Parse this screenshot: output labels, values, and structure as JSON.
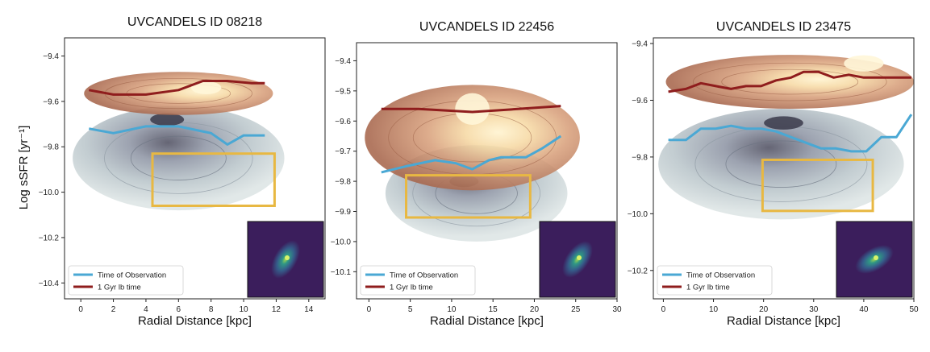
{
  "figure": {
    "ylabel": "Log sSFR [yr⁻¹]",
    "xlabel": "Radial Distance [kpc]"
  },
  "legend": {
    "entries": [
      {
        "label": "Time of Observation",
        "color": "#4aa8d4"
      },
      {
        "label": "1 Gyr lb time",
        "color": "#8f1d1d"
      }
    ]
  },
  "colors": {
    "observation_line": "#4aa8d4",
    "lookback_line": "#8f1d1d",
    "highlight_box": "#e8b842",
    "upper_contour": "#b06d4f",
    "upper_contour_core": "#fbe7b2",
    "lower_contour": "#7c8796",
    "lower_contour_core": "#3a3a4a",
    "inset_background": "#3b1e5c"
  },
  "chart_data": [
    {
      "type": "line",
      "title": "UVCANDELS ID 08218",
      "xlabel": "Radial Distance [kpc]",
      "ylabel": "Log sSFR [yr⁻¹]",
      "xlim": [
        -1,
        15
      ],
      "ylim": [
        -10.47,
        -9.32
      ],
      "xticks": [
        0,
        2,
        4,
        6,
        8,
        10,
        12,
        14
      ],
      "yticks": [
        -9.4,
        -9.6,
        -9.8,
        -10.0,
        -10.2,
        -10.4
      ],
      "legend_position": "lower-left",
      "series": [
        {
          "name": "Time of Observation",
          "color": "#4aa8d4",
          "x": [
            0.5,
            2.0,
            4.0,
            6.0,
            8.0,
            9.0,
            10.0,
            11.3
          ],
          "y": [
            -9.72,
            -9.74,
            -9.71,
            -9.71,
            -9.74,
            -9.79,
            -9.75,
            -9.75
          ]
        },
        {
          "name": "1 Gyr lb time",
          "color": "#8f1d1d",
          "x": [
            0.5,
            2.0,
            4.0,
            6.0,
            7.5,
            9.0,
            10.5,
            11.3
          ],
          "y": [
            -9.55,
            -9.57,
            -9.57,
            -9.55,
            -9.51,
            -9.51,
            -9.52,
            -9.52
          ]
        }
      ],
      "upper_density": {
        "x_range": [
          0.2,
          11.8
        ],
        "y_range": [
          -9.66,
          -9.47
        ],
        "core": [
          7.7,
          -9.54
        ]
      },
      "lower_density": {
        "x_range": [
          -0.5,
          12.5
        ],
        "y_range": [
          -10.08,
          -9.62
        ],
        "core": [
          5.3,
          -9.68
        ]
      },
      "highlight_box": {
        "x": [
          4.4,
          11.9
        ],
        "y": [
          -10.06,
          -9.83
        ]
      }
    },
    {
      "type": "line",
      "title": "UVCANDELS ID 22456",
      "xlabel": "Radial Distance [kpc]",
      "xlim": [
        -1.5,
        30
      ],
      "ylim": [
        -10.19,
        -9.34
      ],
      "xticks": [
        0,
        5,
        10,
        15,
        20,
        25,
        30
      ],
      "yticks": [
        -9.4,
        -9.5,
        -9.6,
        -9.7,
        -9.8,
        -9.9,
        -10.0,
        -10.1
      ],
      "legend_position": "lower-left",
      "series": [
        {
          "name": "Time of Observation",
          "color": "#4aa8d4",
          "x": [
            1.5,
            4.5,
            8.0,
            10.5,
            12.5,
            14.5,
            16.0,
            19.0,
            21.0,
            23.2
          ],
          "y": [
            -9.77,
            -9.75,
            -9.73,
            -9.74,
            -9.76,
            -9.73,
            -9.72,
            -9.72,
            -9.69,
            -9.65
          ]
        },
        {
          "name": "1 Gyr lb time",
          "color": "#8f1d1d",
          "x": [
            1.5,
            6.0,
            12.5,
            18.0,
            23.2
          ],
          "y": [
            -9.56,
            -9.56,
            -9.57,
            -9.56,
            -9.55
          ]
        }
      ],
      "upper_density": {
        "x_range": [
          -0.5,
          25.5
        ],
        "y_range": [
          -9.83,
          -9.48
        ],
        "core": [
          12.5,
          -9.56
        ]
      },
      "lower_density": {
        "x_range": [
          2,
          24
        ],
        "y_range": [
          -10.0,
          -9.68
        ],
        "core": [
          11.5,
          -9.8
        ]
      },
      "highlight_box": {
        "x": [
          4.5,
          19.5
        ],
        "y": [
          -9.92,
          -9.78
        ]
      }
    },
    {
      "type": "line",
      "title": "UVCANDELS ID 23475",
      "xlabel": "Radial Distance [kpc]",
      "xlim": [
        -2,
        50
      ],
      "ylim": [
        -10.3,
        -9.38
      ],
      "xticks": [
        0,
        10,
        20,
        30,
        40,
        50
      ],
      "yticks": [
        -9.4,
        -9.6,
        -9.8,
        -10.0,
        -10.2
      ],
      "legend_position": "lower-left",
      "series": [
        {
          "name": "Time of Observation",
          "color": "#4aa8d4",
          "x": [
            1.0,
            4.5,
            7.5,
            10.5,
            13.5,
            16.5,
            19.5,
            22.5,
            25.5,
            28.5,
            31.5,
            34.5,
            37.5,
            40.5,
            43.5,
            46.5,
            49.5
          ],
          "y": [
            -9.74,
            -9.74,
            -9.7,
            -9.7,
            -9.69,
            -9.7,
            -9.7,
            -9.71,
            -9.73,
            -9.75,
            -9.77,
            -9.77,
            -9.78,
            -9.78,
            -9.73,
            -9.73,
            -9.65
          ]
        },
        {
          "name": "1 Gyr lb time",
          "color": "#8f1d1d",
          "x": [
            1.0,
            4.5,
            7.5,
            10.5,
            13.5,
            16.5,
            19.5,
            22.5,
            25.5,
            28.0,
            31.0,
            34.0,
            37.0,
            40.0,
            43.0,
            46.0,
            49.5
          ],
          "y": [
            -9.57,
            -9.56,
            -9.54,
            -9.55,
            -9.56,
            -9.55,
            -9.55,
            -9.53,
            -9.52,
            -9.5,
            -9.5,
            -9.52,
            -9.51,
            -9.52,
            -9.52,
            -9.52,
            -9.52
          ]
        }
      ],
      "upper_density": {
        "x_range": [
          0.5,
          50
        ],
        "y_range": [
          -9.63,
          -9.44
        ],
        "core": [
          40,
          -9.47
        ]
      },
      "lower_density": {
        "x_range": [
          -1,
          48
        ],
        "y_range": [
          -10.02,
          -9.63
        ],
        "core": [
          24,
          -9.68
        ]
      },
      "highlight_box": {
        "x": [
          19.8,
          41.8
        ],
        "y": [
          -9.99,
          -9.81
        ]
      }
    }
  ]
}
